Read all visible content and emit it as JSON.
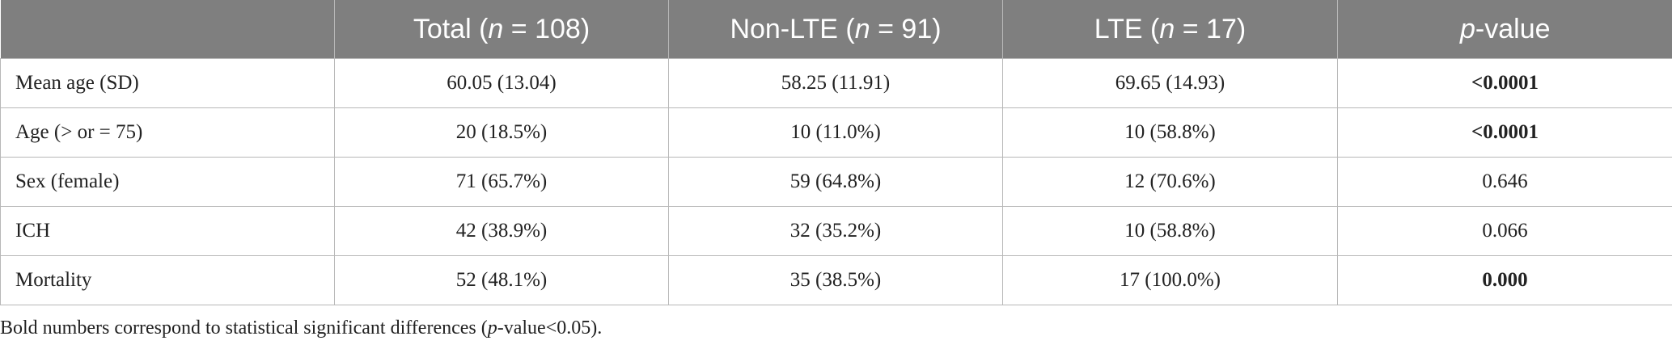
{
  "table": {
    "columns": [
      [],
      [
        {
          "text": "Total ("
        },
        {
          "text": "n",
          "italic": true
        },
        {
          "text": " = 108)"
        }
      ],
      [
        {
          "text": "Non-LTE ("
        },
        {
          "text": "n",
          "italic": true
        },
        {
          "text": " = 91)"
        }
      ],
      [
        {
          "text": "LTE ("
        },
        {
          "text": "n",
          "italic": true
        },
        {
          "text": " = 17)"
        }
      ],
      [
        {
          "text": "p",
          "italic": true
        },
        {
          "text": "-value"
        }
      ]
    ],
    "rows": [
      {
        "label": "Mean age (SD)",
        "cells": [
          "60.05 (13.04)",
          "58.25 (11.91)",
          "69.65 (14.93)"
        ],
        "p_value": "<0.0001",
        "significant": true
      },
      {
        "label": "Age (> or = 75)",
        "cells": [
          "20 (18.5%)",
          "10 (11.0%)",
          "10 (58.8%)"
        ],
        "p_value": "<0.0001",
        "significant": true
      },
      {
        "label": "Sex (female)",
        "cells": [
          "71 (65.7%)",
          "59 (64.8%)",
          "12 (70.6%)"
        ],
        "p_value": "0.646",
        "significant": false
      },
      {
        "label": "ICH",
        "cells": [
          "42 (38.9%)",
          "32 (35.2%)",
          "10 (58.8%)"
        ],
        "p_value": "0.066",
        "significant": false
      },
      {
        "label": "Mortality",
        "cells": [
          "52 (48.1%)",
          "35 (38.5%)",
          "17 (100.0%)"
        ],
        "p_value": "0.000",
        "significant": true
      }
    ]
  },
  "footnote": [
    {
      "text": "Bold numbers correspond to statistical significant differences ("
    },
    {
      "text": "p",
      "italic": true
    },
    {
      "text": "-value<0.05)."
    }
  ]
}
